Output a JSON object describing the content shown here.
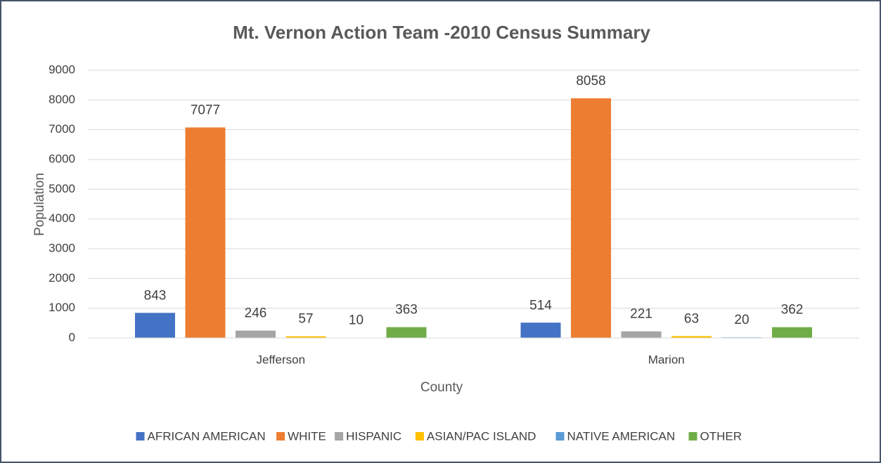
{
  "chart_data": {
    "type": "bar",
    "title": "Mt. Vernon Action Team -2010 Census Summary",
    "x_label": "County",
    "y_label": "Population",
    "categories": [
      "Jefferson",
      "Marion"
    ],
    "series": [
      {
        "name": "AFRICAN AMERICAN",
        "color": "#4472c4",
        "values": [
          843,
          514
        ]
      },
      {
        "name": "WHITE",
        "color": "#ed7d31",
        "values": [
          7077,
          8058
        ]
      },
      {
        "name": "HISPANIC",
        "color": "#a5a5a5",
        "values": [
          246,
          221
        ]
      },
      {
        "name": "ASIAN/PAC ISLAND",
        "color": "#ffc000",
        "values": [
          57,
          63
        ]
      },
      {
        "name": "NATIVE AMERICAN",
        "color": "#5b9bd5",
        "values": [
          10,
          20
        ]
      },
      {
        "name": "OTHER",
        "color": "#70ad47",
        "values": [
          363,
          362
        ]
      }
    ],
    "ylim": [
      0,
      9000
    ],
    "yticks": [
      0,
      1000,
      2000,
      3000,
      4000,
      5000,
      6000,
      7000,
      8000,
      9000
    ],
    "grid": true,
    "legend": "bottom"
  }
}
